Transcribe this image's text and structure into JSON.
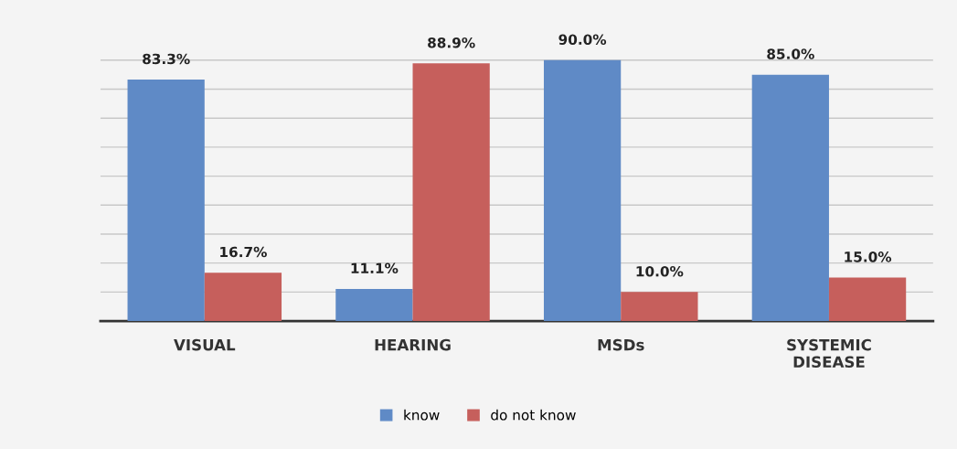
{
  "chart_data": {
    "type": "bar",
    "categories": [
      "VISUAL",
      "HEARING",
      "MSDs",
      "SYSTEMIC\nDISEASE"
    ],
    "series": [
      {
        "name": "know",
        "color": "#5f8ac6",
        "values": [
          83.3,
          11.1,
          90.0,
          85.0
        ],
        "value_labels": [
          "83.3%",
          "11.1%",
          "90.0%",
          "85.0%"
        ]
      },
      {
        "name": "do not know",
        "color": "#c65f5c",
        "values": [
          16.7,
          88.9,
          10.0,
          15.0
        ],
        "value_labels": [
          "16.7%",
          "88.9%",
          "10.0%",
          "15.0%"
        ]
      }
    ],
    "tick_labels": "x",
    "grid": "y",
    "legend": "bottom"
  }
}
